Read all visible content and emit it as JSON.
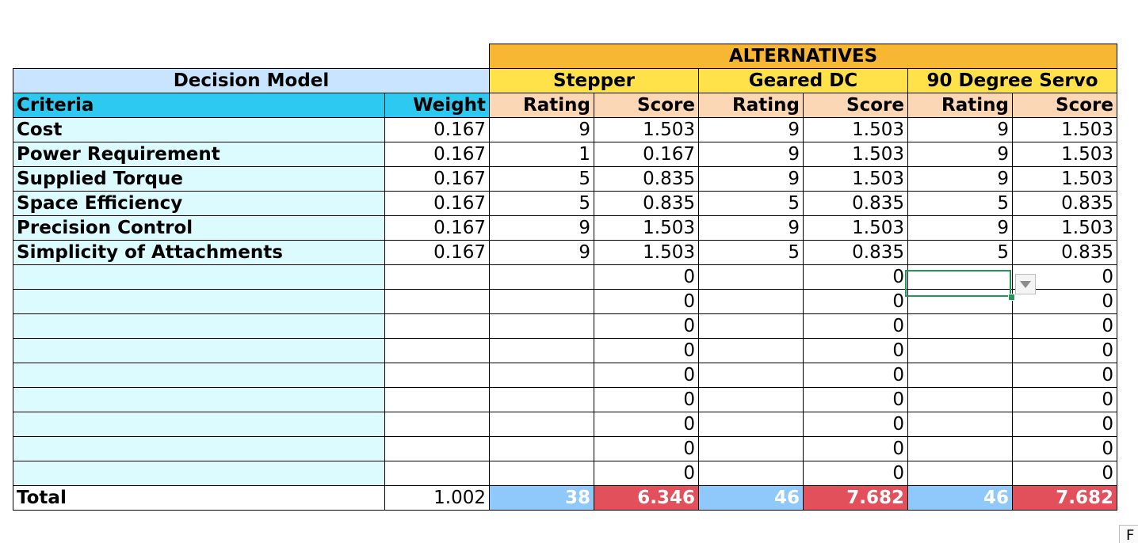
{
  "header": {
    "alternatives": "ALTERNATIVES",
    "decision_model": "Decision Model",
    "criteria": "Criteria",
    "weight": "Weight",
    "rating": "Rating",
    "score": "Score"
  },
  "alternatives": [
    "Stepper",
    "Geared DC",
    "90 Degree Servo"
  ],
  "rows": [
    {
      "criterion": "Cost",
      "weight": "0.167",
      "vals": [
        "9",
        "1.503",
        "9",
        "1.503",
        "9",
        "1.503"
      ]
    },
    {
      "criterion": "Power Requirement",
      "weight": "0.167",
      "vals": [
        "1",
        "0.167",
        "9",
        "1.503",
        "9",
        "1.503"
      ]
    },
    {
      "criterion": "Supplied Torque",
      "weight": "0.167",
      "vals": [
        "5",
        "0.835",
        "9",
        "1.503",
        "9",
        "1.503"
      ]
    },
    {
      "criterion": "Space Efficiency",
      "weight": "0.167",
      "vals": [
        "5",
        "0.835",
        "5",
        "0.835",
        "5",
        "0.835"
      ]
    },
    {
      "criterion": "Precision Control",
      "weight": "0.167",
      "vals": [
        "9",
        "1.503",
        "9",
        "1.503",
        "9",
        "1.503"
      ]
    },
    {
      "criterion": "Simplicity of Attachments",
      "weight": "0.167",
      "vals": [
        "9",
        "1.503",
        "5",
        "0.835",
        "5",
        "0.835"
      ]
    },
    {
      "criterion": "",
      "weight": "",
      "vals": [
        "",
        "0",
        "",
        "0",
        "",
        "0"
      ]
    },
    {
      "criterion": "",
      "weight": "",
      "vals": [
        "",
        "0",
        "",
        "0",
        "",
        "0"
      ]
    },
    {
      "criterion": "",
      "weight": "",
      "vals": [
        "",
        "0",
        "",
        "0",
        "",
        "0"
      ]
    },
    {
      "criterion": "",
      "weight": "",
      "vals": [
        "",
        "0",
        "",
        "0",
        "",
        "0"
      ]
    },
    {
      "criterion": "",
      "weight": "",
      "vals": [
        "",
        "0",
        "",
        "0",
        "",
        "0"
      ]
    },
    {
      "criterion": "",
      "weight": "",
      "vals": [
        "",
        "0",
        "",
        "0",
        "",
        "0"
      ]
    },
    {
      "criterion": "",
      "weight": "",
      "vals": [
        "",
        "0",
        "",
        "0",
        "",
        "0"
      ]
    },
    {
      "criterion": "",
      "weight": "",
      "vals": [
        "",
        "0",
        "",
        "0",
        "",
        "0"
      ]
    },
    {
      "criterion": "",
      "weight": "",
      "vals": [
        "",
        "0",
        "",
        "0",
        "",
        "0"
      ]
    }
  ],
  "total": {
    "label": "Total",
    "weight": "1.002",
    "vals": [
      "38",
      "6.346",
      "46",
      "7.682",
      "46",
      "7.682"
    ]
  },
  "corner_text": "F",
  "colors": {
    "alternatives_header": "#f7b733",
    "decision_model": "#c9e4ff",
    "alternative_name": "#ffe24a",
    "criteria_header": "#2dc9f0",
    "rating_score_header": "#fbd7b6",
    "criteria_cells": "#dcfbff",
    "total_rating": "#8fc8fa",
    "total_score": "#e2505b",
    "selection": "#1f9a55"
  }
}
